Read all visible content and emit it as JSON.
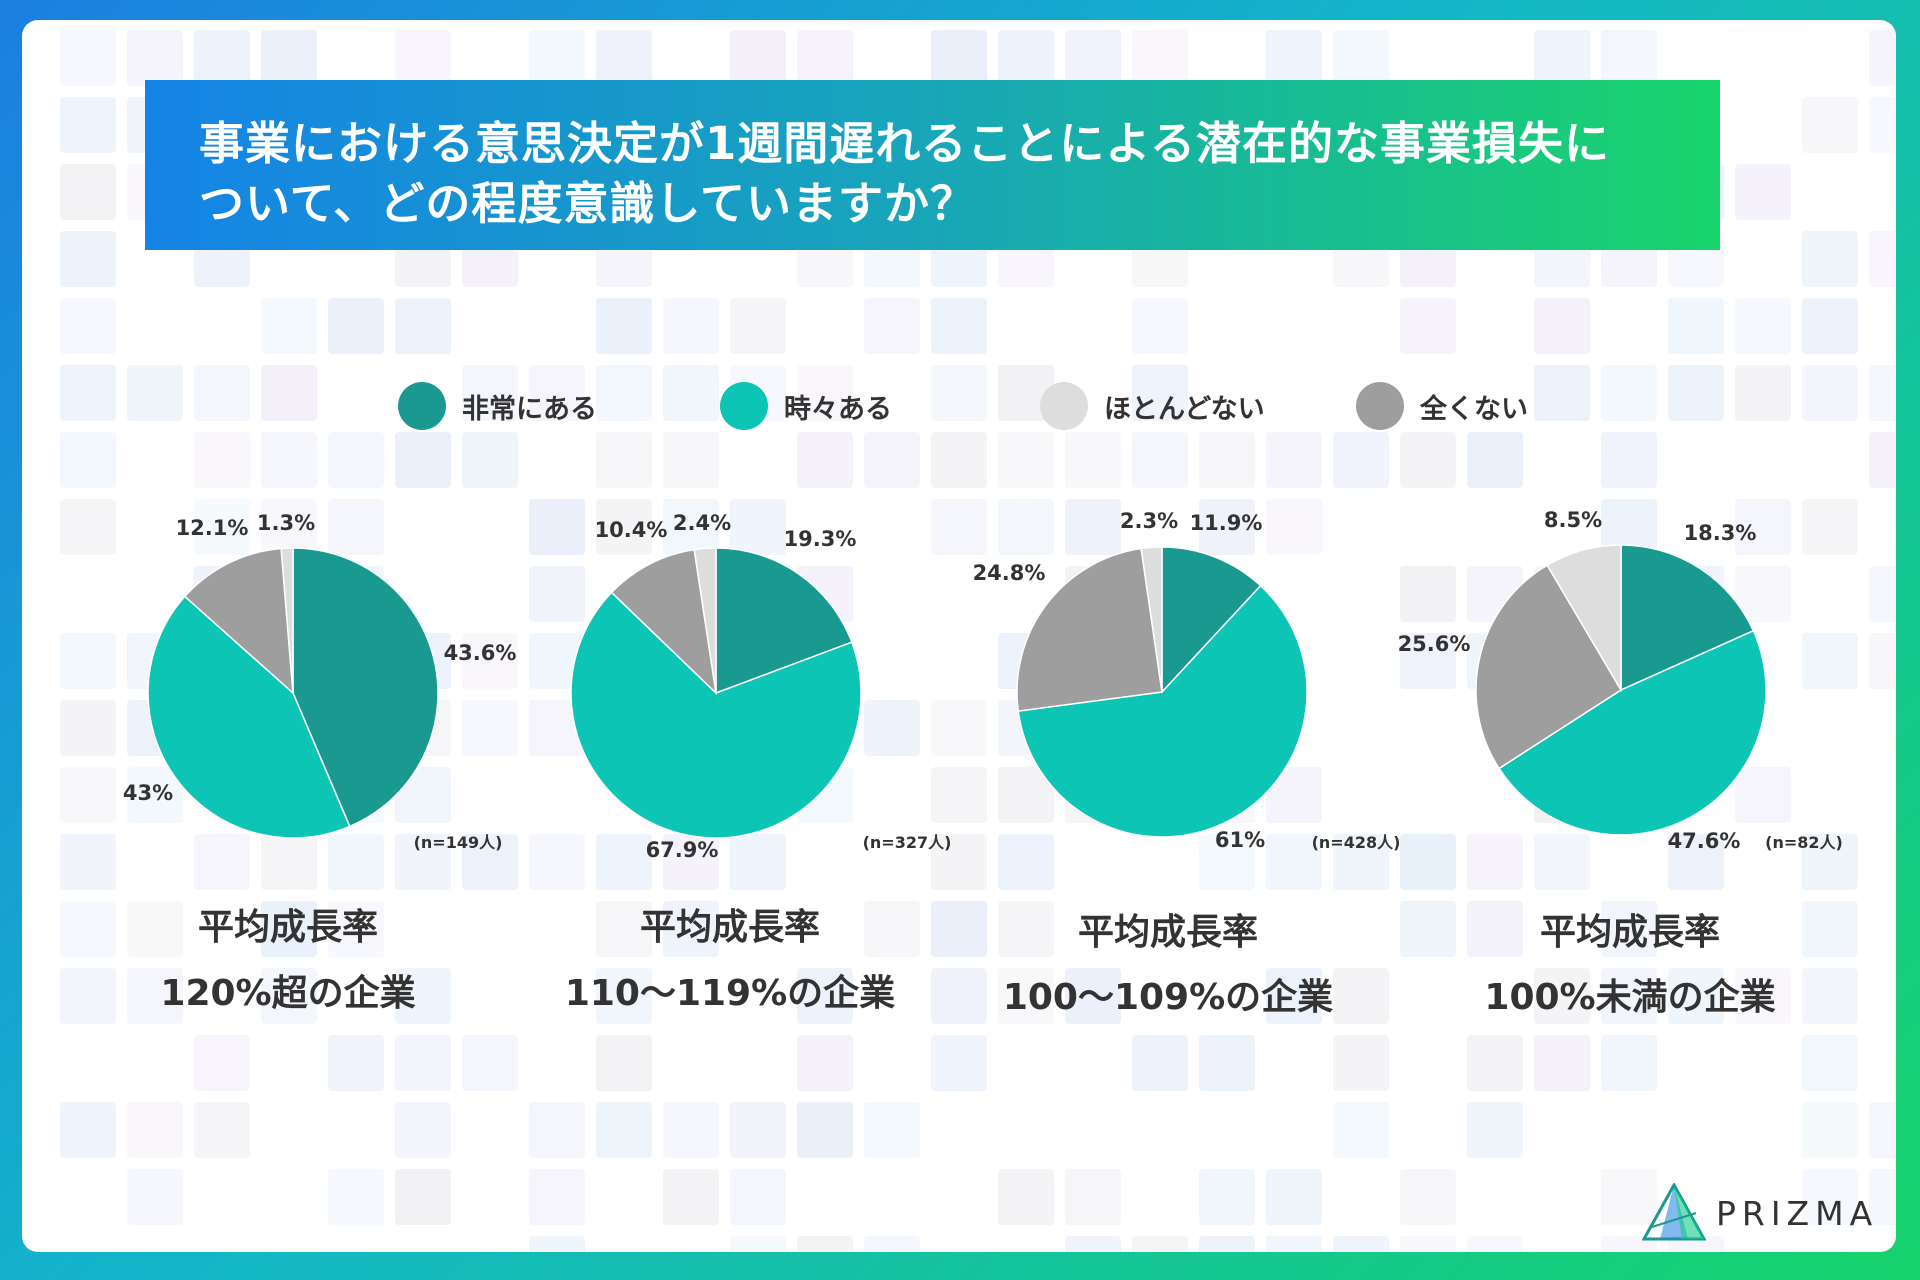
{
  "title": {
    "line1": "事業における意思決定が1週間遅れることによる潜在的な事業損失に",
    "line2": "ついて、どの程度意識していますか？"
  },
  "legend": [
    {
      "label": "非常にある",
      "color": "#1a9990"
    },
    {
      "label": "時々ある",
      "color": "#0dc5b5"
    },
    {
      "label": "ほとんどない",
      "color": "#dddddd"
    },
    {
      "label": "全くない",
      "color": "#9e9e9e"
    }
  ],
  "chart_data": [
    {
      "type": "pie",
      "title": "平均成長率",
      "subtitle": "120%超の企業",
      "n_label": "(n=149人)",
      "labels": [
        "非常にある",
        "時々ある",
        "全くない",
        "ほとんどない"
      ],
      "values": [
        43.6,
        43,
        12.1,
        1.3
      ],
      "value_labels": [
        "43.6%",
        "43%",
        "12.1%",
        "1.3%"
      ],
      "colors": [
        "#1a9990",
        "#0dc5b5",
        "#9e9e9e",
        "#dddddd"
      ]
    },
    {
      "type": "pie",
      "title": "平均成長率",
      "subtitle": "110〜119%の企業",
      "n_label": "(n=327人)",
      "labels": [
        "非常にある",
        "時々ある",
        "全くない",
        "ほとんどない"
      ],
      "values": [
        19.3,
        67.9,
        10.4,
        2.4
      ],
      "value_labels": [
        "19.3%",
        "67.9%",
        "10.4%",
        "2.4%"
      ],
      "colors": [
        "#1a9990",
        "#0dc5b5",
        "#9e9e9e",
        "#dddddd"
      ]
    },
    {
      "type": "pie",
      "title": "平均成長率",
      "subtitle": "100〜109%の企業",
      "n_label": "(n=428人)",
      "labels": [
        "非常にある",
        "時々ある",
        "全くない",
        "ほとんどない"
      ],
      "values": [
        11.9,
        61,
        24.8,
        2.3
      ],
      "value_labels": [
        "11.9%",
        "61%",
        "24.8%",
        "2.3%"
      ],
      "colors": [
        "#1a9990",
        "#0dc5b5",
        "#9e9e9e",
        "#dddddd"
      ]
    },
    {
      "type": "pie",
      "title": "平均成長率",
      "subtitle": "100%未満の企業",
      "n_label": "(n=82人)",
      "labels": [
        "非常にある",
        "時々ある",
        "全くない",
        "ほとんどない"
      ],
      "values": [
        18.3,
        47.6,
        25.6,
        8.5
      ],
      "value_labels": [
        "18.3%",
        "47.6%",
        "25.6%",
        "8.5%"
      ],
      "colors": [
        "#1a9990",
        "#0dc5b5",
        "#9e9e9e",
        "#dddddd"
      ]
    }
  ],
  "logo": {
    "text": "PRIZMA"
  }
}
